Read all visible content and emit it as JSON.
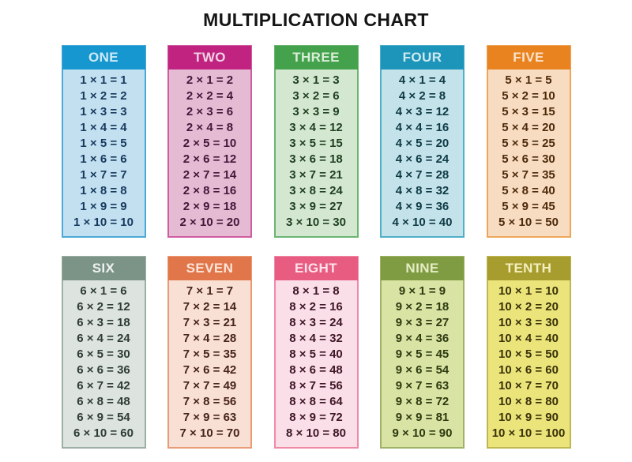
{
  "title": "MULTIPLICATION CHART",
  "tables": [
    {
      "label": "ONE",
      "header_bg": "#1697cf",
      "header_text": "#cdeaf8",
      "body_bg": "#c3e0f1",
      "border": "#4aa9d6",
      "text": "#173a5e",
      "facts": [
        "1 × 1 = 1",
        "1 × 2 = 2",
        "1 × 3 = 3",
        "1 × 4 = 4",
        "1 × 5 = 5",
        "1 × 6 = 6",
        "1 × 7 = 7",
        "1 × 8 = 8",
        "1 × 9 = 9",
        "1 × 10 = 10"
      ]
    },
    {
      "label": "TWO",
      "header_bg": "#c02380",
      "header_text": "#f0d2e4",
      "body_bg": "#e5bad3",
      "border": "#cf5ca2",
      "text": "#43173a",
      "facts": [
        "2 × 1 = 2",
        "2 × 2 = 4",
        "2 × 3 = 6",
        "2 × 4 = 8",
        "2 × 5 = 10",
        "2 × 6 = 12",
        "2 × 7 = 14",
        "2 × 8 = 16",
        "2 × 9 = 18",
        "2 × 10 = 20"
      ]
    },
    {
      "label": "THREE",
      "header_bg": "#43a24b",
      "header_text": "#d9edd8",
      "body_bg": "#d4e7d0",
      "border": "#6cb573",
      "text": "#1e3f20",
      "facts": [
        "3 × 1 = 3",
        "3 × 2 = 6",
        "3 × 3 = 9",
        "3 × 4 = 12",
        "3 × 5 = 15",
        "3 × 6 = 18",
        "3 × 7 = 21",
        "3 × 8 = 24",
        "3 × 9 = 27",
        "3 × 10 = 30"
      ]
    },
    {
      "label": "FOUR",
      "header_bg": "#1d95ba",
      "header_text": "#cfe9ef",
      "body_bg": "#c4e2e9",
      "border": "#4fb0c9",
      "text": "#0e3a46",
      "facts": [
        "4 × 1 = 4",
        "4 × 2 = 8",
        "4 × 3 = 12",
        "4 × 4 = 16",
        "4 × 5 = 20",
        "4 × 6 = 24",
        "4 × 7 = 28",
        "4 × 8 = 32",
        "4 × 9 = 36",
        "4 × 10 = 40"
      ]
    },
    {
      "label": "FIVE",
      "header_bg": "#e8831f",
      "header_text": "#fbe3cc",
      "body_bg": "#f7dcc2",
      "border": "#eda659",
      "text": "#4d2a0a",
      "facts": [
        "5 × 1 = 5",
        "5 × 2 = 10",
        "5 × 3 = 15",
        "5 × 4 = 20",
        "5 × 5 = 25",
        "5 × 6 = 30",
        "5 × 7 = 35",
        "5 × 8 = 40",
        "5 × 9 = 45",
        "5 × 10 = 50"
      ]
    },
    {
      "label": "SIX",
      "header_bg": "#7c9487",
      "header_text": "#eff3ef",
      "body_bg": "#dde4e0",
      "border": "#9cafa4",
      "text": "#2f3c36",
      "facts": [
        "6 × 1 = 6",
        "6 × 2 = 12",
        "6 × 3 = 18",
        "6 × 4 = 24",
        "6 × 5 = 30",
        "6 × 6 = 36",
        "6 × 7 = 42",
        "6 × 8 = 48",
        "6 × 9 = 54",
        "6 × 10 = 60"
      ]
    },
    {
      "label": "SEVEN",
      "header_bg": "#e1764b",
      "header_text": "#fbe5d8",
      "body_bg": "#f9e0d4",
      "border": "#e99a77",
      "text": "#47241a",
      "facts": [
        "7 × 1 = 7",
        "7 × 2 = 14",
        "7 × 3 = 21",
        "7 × 4 = 28",
        "7 × 5 = 35",
        "7 × 6 = 42",
        "7 × 7 = 49",
        "7 × 8 = 56",
        "7 × 9 = 63",
        "7 × 10 = 70"
      ]
    },
    {
      "label": "EIGHT",
      "header_bg": "#e85c81",
      "header_text": "#fce4ec",
      "body_bg": "#fadfe9",
      "border": "#ef8aa6",
      "text": "#3f1626",
      "facts": [
        "8 × 1 = 8",
        "8 × 2 = 16",
        "8 × 3 = 24",
        "8 × 4 = 32",
        "8 × 5 = 40",
        "8 × 6 = 48",
        "8 × 7 = 56",
        "8 × 8 = 64",
        "8 × 9 = 72",
        "8 × 10 = 80"
      ]
    },
    {
      "label": "NINE",
      "header_bg": "#7f9c43",
      "header_text": "#e4ecc4",
      "body_bg": "#d9e3a4",
      "border": "#9eb368",
      "text": "#2d3a10",
      "facts": [
        "9 × 1 = 9",
        "9 × 2 = 18",
        "9 × 3 = 27",
        "9 × 4 = 36",
        "9 × 5 = 45",
        "9 × 6 = 54",
        "9 × 7 = 63",
        "9 × 8 = 72",
        "9 × 9 = 81",
        "9 × 10 = 90"
      ]
    },
    {
      "label": "TENTH",
      "header_bg": "#a79d2e",
      "header_text": "#f3efc0",
      "body_bg": "#ebe47b",
      "border": "#bfb754",
      "text": "#3a3208",
      "facts": [
        "10 × 1 = 10",
        "10 × 2 = 20",
        "10 × 3 = 30",
        "10 × 4 = 40",
        "10 × 5 = 50",
        "10 × 6 = 60",
        "10 × 7 = 70",
        "10 × 8 = 80",
        "10 × 9 = 90",
        "10 × 10 = 100"
      ]
    }
  ],
  "chart_data": {
    "type": "table",
    "title": "MULTIPLICATION CHART",
    "columns": [
      "ONE",
      "TWO",
      "THREE",
      "FOUR",
      "FIVE",
      "SIX",
      "SEVEN",
      "EIGHT",
      "NINE",
      "TENTH"
    ],
    "multipliers": [
      1,
      2,
      3,
      4,
      5,
      6,
      7,
      8,
      9,
      10
    ],
    "multiplicands": [
      1,
      2,
      3,
      4,
      5,
      6,
      7,
      8,
      9,
      10
    ],
    "products": [
      [
        1,
        2,
        3,
        4,
        5,
        6,
        7,
        8,
        9,
        10
      ],
      [
        2,
        4,
        6,
        8,
        10,
        12,
        14,
        16,
        18,
        20
      ],
      [
        3,
        6,
        9,
        12,
        15,
        18,
        21,
        24,
        27,
        30
      ],
      [
        4,
        8,
        12,
        16,
        20,
        24,
        28,
        32,
        36,
        40
      ],
      [
        5,
        10,
        15,
        20,
        25,
        30,
        35,
        40,
        45,
        50
      ],
      [
        6,
        12,
        18,
        24,
        30,
        36,
        42,
        48,
        54,
        60
      ],
      [
        7,
        14,
        21,
        28,
        35,
        42,
        49,
        56,
        63,
        70
      ],
      [
        8,
        16,
        24,
        32,
        40,
        48,
        56,
        64,
        72,
        80
      ],
      [
        9,
        18,
        27,
        36,
        45,
        54,
        63,
        72,
        81,
        90
      ],
      [
        10,
        20,
        30,
        40,
        50,
        60,
        70,
        80,
        90,
        100
      ]
    ],
    "layout": {
      "rows_of_cards": 2,
      "cards_per_row": 5
    }
  }
}
